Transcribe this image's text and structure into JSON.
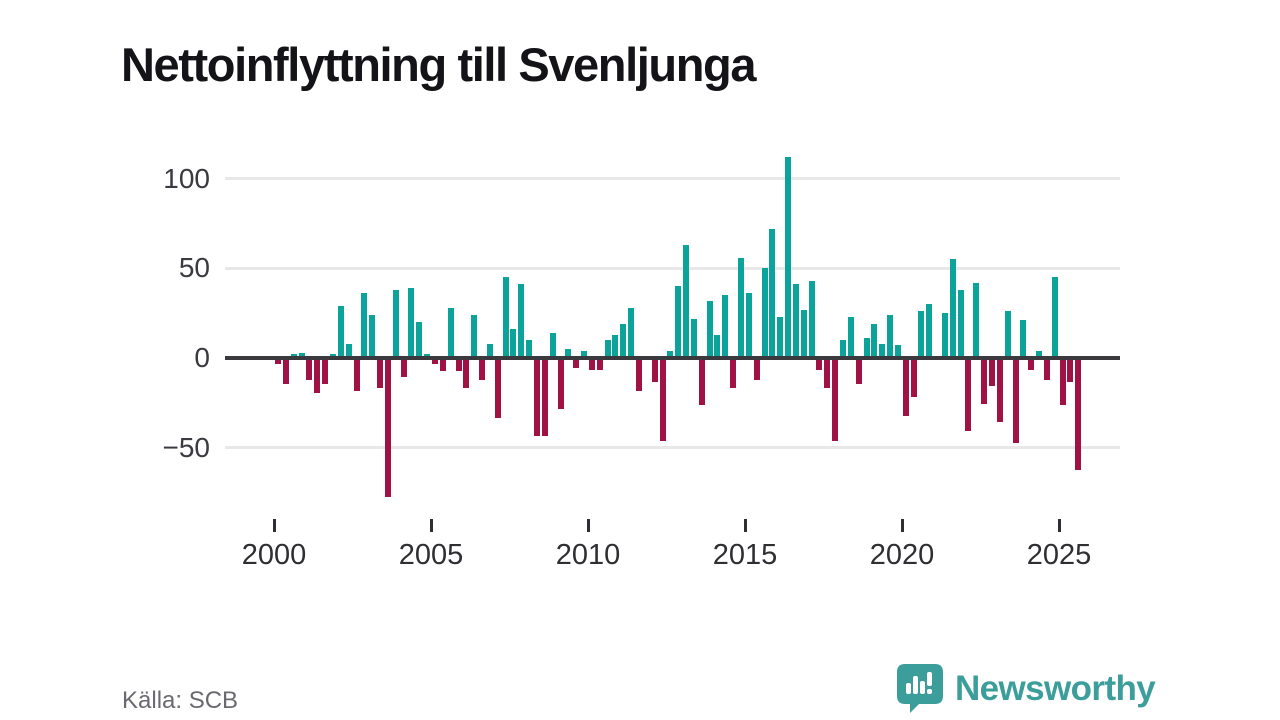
{
  "title": "Nettoinflyttning till Svenljunga",
  "source": "Källa: SCB",
  "brand": {
    "name": "Newsworthy",
    "icon": "newsworthy-speech-bubble-chart-icon",
    "color": "#3c9e9b"
  },
  "colors": {
    "positive": "#0ca39a",
    "negative": "#a01244",
    "zero_line": "#3a3a3e",
    "gridline": "#e8e8e8",
    "axis_text": "#2f2f33",
    "source_text": "#696970"
  },
  "chart_data": {
    "type": "bar",
    "title": "Nettoinflyttning till Svenljunga",
    "xlabel": "",
    "ylabel": "",
    "x_tick_labels": [
      "2000",
      "2005",
      "2010",
      "2015",
      "2020",
      "2025"
    ],
    "y_ticks": [
      100,
      50,
      0,
      -50
    ],
    "ylim": [
      -85,
      115
    ],
    "grid": "horizontal",
    "legend": "none",
    "frequency": "quarterly",
    "years": [
      {
        "year": "2000",
        "values": [
          -4,
          -15,
          2,
          3
        ]
      },
      {
        "year": "2001",
        "values": [
          -13,
          -20,
          -15,
          2
        ]
      },
      {
        "year": "2002",
        "values": [
          29,
          8,
          -19,
          36
        ]
      },
      {
        "year": "2003",
        "values": [
          24,
          -17,
          -78,
          38
        ]
      },
      {
        "year": "2004",
        "values": [
          -11,
          39,
          20,
          2
        ]
      },
      {
        "year": "2005",
        "values": [
          -4,
          -8,
          28,
          -8
        ]
      },
      {
        "year": "2006",
        "values": [
          -17,
          24,
          -13,
          8
        ]
      },
      {
        "year": "2007",
        "values": [
          -34,
          45,
          16,
          41
        ]
      },
      {
        "year": "2008",
        "values": [
          10,
          -44,
          -44,
          14
        ]
      },
      {
        "year": "2009",
        "values": [
          -29,
          5,
          -6,
          4
        ]
      },
      {
        "year": "2010",
        "values": [
          -7,
          -7,
          10,
          13
        ]
      },
      {
        "year": "2011",
        "values": [
          19,
          28,
          -19,
          0
        ]
      },
      {
        "year": "2012",
        "values": [
          -14,
          -47,
          4,
          40
        ]
      },
      {
        "year": "2013",
        "values": [
          63,
          22,
          -27,
          32
        ]
      },
      {
        "year": "2014",
        "values": [
          13,
          35,
          -17,
          56
        ]
      },
      {
        "year": "2015",
        "values": [
          36,
          -13,
          50,
          72
        ]
      },
      {
        "year": "2016",
        "values": [
          23,
          112,
          41,
          27
        ]
      },
      {
        "year": "2017",
        "values": [
          43,
          -7,
          -17,
          -47
        ]
      },
      {
        "year": "2018",
        "values": [
          10,
          23,
          -15,
          11
        ]
      },
      {
        "year": "2019",
        "values": [
          19,
          8,
          24,
          7
        ]
      },
      {
        "year": "2020",
        "values": [
          -33,
          -22,
          26,
          30
        ]
      },
      {
        "year": "2021",
        "values": [
          0,
          25,
          55,
          38
        ]
      },
      {
        "year": "2022",
        "values": [
          -41,
          42,
          -26,
          -16
        ]
      },
      {
        "year": "2023",
        "values": [
          -36,
          26,
          -48,
          21
        ]
      },
      {
        "year": "2024",
        "values": [
          -7,
          4,
          -13,
          45
        ]
      },
      {
        "year": "2025",
        "values": [
          -27,
          -14,
          -63
        ]
      }
    ]
  }
}
